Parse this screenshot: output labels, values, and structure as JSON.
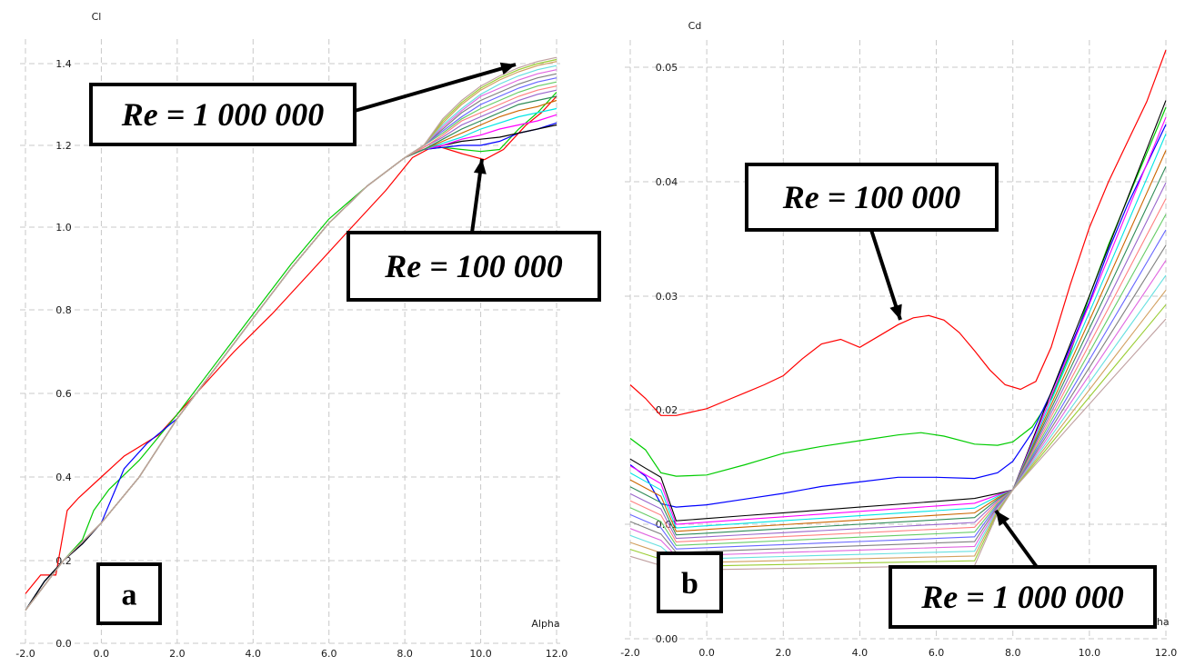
{
  "chart_data": [
    {
      "type": "line",
      "panel_label": "a",
      "ylabel": "Cl",
      "xlabel": "Alpha",
      "xlim": [
        -2.0,
        12.0
      ],
      "ylim": [
        0.0,
        1.4
      ],
      "xticks": [
        "-2.0",
        "0.0",
        "2.0",
        "4.0",
        "6.0",
        "8.0",
        "10.0",
        "12.0"
      ],
      "yticks": [
        "0.0",
        "0.2",
        "0.4",
        "0.6",
        "0.8",
        "1.0",
        "1.2",
        "1.4"
      ],
      "grid": true,
      "annotations": [
        {
          "text": "Re = 1 000 000",
          "points_to": [
            11.2,
            1.4
          ]
        },
        {
          "text": "Re = 100 000",
          "points_to": [
            10.2,
            1.17
          ]
        }
      ],
      "series": [
        {
          "color": "#ff0000",
          "x": [
            -2.0,
            -1.6,
            -1.2,
            -0.9,
            -0.6,
            0,
            0.6,
            1.5,
            2.5,
            3.5,
            4.5,
            5.5,
            6.5,
            7.5,
            8.2,
            8.8,
            9.5,
            10.1,
            10.6,
            11.2,
            11.6,
            12.0
          ],
          "y": [
            0.12,
            0.165,
            0.165,
            0.32,
            0.35,
            0.4,
            0.45,
            0.5,
            0.6,
            0.7,
            0.79,
            0.89,
            0.99,
            1.09,
            1.17,
            1.2,
            1.18,
            1.165,
            1.19,
            1.25,
            1.28,
            1.32
          ]
        },
        {
          "color": "#00cc00",
          "x": [
            -2.0,
            -1.5,
            -1.0,
            -0.5,
            -0.2,
            0.2,
            1.0,
            2.0,
            3.0,
            4.0,
            5.0,
            6.0,
            7.0,
            8.0,
            8.5,
            9.0,
            9.5,
            10.0,
            10.5,
            11.0,
            11.5,
            12.0
          ],
          "y": [
            0.08,
            0.15,
            0.2,
            0.25,
            0.32,
            0.37,
            0.44,
            0.55,
            0.67,
            0.79,
            0.91,
            1.02,
            1.1,
            1.17,
            1.19,
            1.195,
            1.19,
            1.185,
            1.19,
            1.24,
            1.28,
            1.33
          ]
        },
        {
          "color": "#0000ff",
          "x": [
            -2.0,
            -1.5,
            -1.0,
            -0.5,
            0.0,
            0.6,
            1.2,
            2.0,
            3.0,
            4.0,
            5.0,
            6.0,
            7.0,
            8.0,
            8.5,
            9.0,
            9.5,
            10.0,
            10.5,
            11.0,
            11.5,
            12.0
          ],
          "y": [
            0.08,
            0.15,
            0.2,
            0.24,
            0.29,
            0.42,
            0.48,
            0.54,
            0.66,
            0.78,
            0.9,
            1.01,
            1.1,
            1.17,
            1.19,
            1.195,
            1.2,
            1.2,
            1.21,
            1.23,
            1.24,
            1.255
          ]
        },
        {
          "color": "#000000",
          "x": [
            -2.0,
            -1.5,
            -1.0,
            -0.5,
            0.0,
            1.0,
            2.0,
            3.0,
            4.0,
            5.0,
            6.0,
            7.0,
            8.0,
            8.5,
            9.0,
            9.5,
            10.0,
            10.5,
            11.0,
            11.5,
            12.0
          ],
          "y": [
            0.08,
            0.15,
            0.2,
            0.24,
            0.29,
            0.4,
            0.54,
            0.66,
            0.78,
            0.9,
            1.01,
            1.1,
            1.17,
            1.19,
            1.2,
            1.21,
            1.215,
            1.22,
            1.23,
            1.24,
            1.25
          ]
        },
        {
          "color": "#ff00ff",
          "x": [
            -2.0,
            -1.0,
            0.0,
            1.0,
            2.0,
            3.0,
            4.0,
            5.0,
            6.0,
            7.0,
            8.0,
            8.5,
            9.0,
            9.5,
            10.0,
            10.5,
            11.0,
            11.5,
            12.0
          ],
          "y": [
            0.08,
            0.2,
            0.29,
            0.4,
            0.54,
            0.66,
            0.78,
            0.9,
            1.01,
            1.1,
            1.17,
            1.19,
            1.2,
            1.215,
            1.225,
            1.24,
            1.25,
            1.26,
            1.275
          ]
        },
        {
          "color": "#00e5e5",
          "x": [
            -2.0,
            -1.0,
            0.0,
            1.0,
            2.0,
            3.0,
            4.0,
            5.0,
            6.0,
            7.0,
            8.0,
            8.5,
            9.0,
            9.5,
            10.0,
            10.5,
            11.0,
            11.5,
            12.0
          ],
          "y": [
            0.08,
            0.2,
            0.29,
            0.4,
            0.54,
            0.66,
            0.78,
            0.9,
            1.01,
            1.1,
            1.17,
            1.19,
            1.205,
            1.22,
            1.24,
            1.255,
            1.27,
            1.28,
            1.29
          ]
        },
        {
          "color": "#cc6600",
          "x": [
            -2.0,
            -1.0,
            0.0,
            1.0,
            2.0,
            3.0,
            4.0,
            5.0,
            6.0,
            7.0,
            8.0,
            8.5,
            9.0,
            9.5,
            10.0,
            10.5,
            11.0,
            11.5,
            12.0
          ],
          "y": [
            0.08,
            0.2,
            0.29,
            0.4,
            0.54,
            0.66,
            0.78,
            0.9,
            1.01,
            1.1,
            1.17,
            1.19,
            1.21,
            1.23,
            1.25,
            1.27,
            1.285,
            1.295,
            1.31
          ]
        },
        {
          "color": "#2e8b57",
          "x": [
            -2.0,
            -1.0,
            0.0,
            1.0,
            2.0,
            3.0,
            4.0,
            5.0,
            6.0,
            7.0,
            8.0,
            8.5,
            9.0,
            9.5,
            10.0,
            10.5,
            11.0,
            11.5,
            12.0
          ],
          "y": [
            0.08,
            0.2,
            0.29,
            0.4,
            0.54,
            0.66,
            0.78,
            0.9,
            1.01,
            1.1,
            1.17,
            1.19,
            1.215,
            1.24,
            1.26,
            1.28,
            1.3,
            1.31,
            1.32
          ]
        },
        {
          "color": "#9966cc",
          "x": [
            -2.0,
            -1.0,
            0.0,
            1.0,
            2.0,
            3.0,
            4.0,
            5.0,
            6.0,
            7.0,
            8.0,
            8.5,
            9.0,
            9.5,
            10.0,
            10.5,
            11.0,
            11.5,
            12.0
          ],
          "y": [
            0.08,
            0.2,
            0.29,
            0.4,
            0.54,
            0.66,
            0.78,
            0.9,
            1.01,
            1.1,
            1.17,
            1.195,
            1.22,
            1.25,
            1.27,
            1.29,
            1.31,
            1.325,
            1.335
          ]
        },
        {
          "color": "#ff8080",
          "x": [
            -2.0,
            -1.0,
            0.0,
            1.0,
            2.0,
            3.0,
            4.0,
            5.0,
            6.0,
            7.0,
            8.0,
            8.5,
            9.0,
            9.5,
            10.0,
            10.5,
            11.0,
            11.5,
            12.0
          ],
          "y": [
            0.08,
            0.2,
            0.29,
            0.4,
            0.54,
            0.66,
            0.78,
            0.9,
            1.01,
            1.1,
            1.17,
            1.195,
            1.225,
            1.26,
            1.28,
            1.3,
            1.32,
            1.335,
            1.345
          ]
        },
        {
          "color": "#66cc66",
          "x": [
            -2.0,
            -1.0,
            0.0,
            1.0,
            2.0,
            3.0,
            4.0,
            5.0,
            6.0,
            7.0,
            8.0,
            8.5,
            9.0,
            9.5,
            10.0,
            10.5,
            11.0,
            11.5,
            12.0
          ],
          "y": [
            0.08,
            0.2,
            0.29,
            0.4,
            0.54,
            0.66,
            0.78,
            0.9,
            1.01,
            1.1,
            1.17,
            1.2,
            1.23,
            1.265,
            1.29,
            1.31,
            1.33,
            1.345,
            1.355
          ]
        },
        {
          "color": "#6666ff",
          "x": [
            -2.0,
            -1.0,
            0.0,
            1.0,
            2.0,
            3.0,
            4.0,
            5.0,
            6.0,
            7.0,
            8.0,
            8.5,
            9.0,
            9.5,
            10.0,
            10.5,
            11.0,
            11.5,
            12.0
          ],
          "y": [
            0.08,
            0.2,
            0.29,
            0.4,
            0.54,
            0.66,
            0.78,
            0.9,
            1.01,
            1.1,
            1.17,
            1.2,
            1.235,
            1.27,
            1.3,
            1.32,
            1.34,
            1.355,
            1.365
          ]
        },
        {
          "color": "#808080",
          "x": [
            -2.0,
            -1.0,
            0.0,
            1.0,
            2.0,
            3.0,
            4.0,
            5.0,
            6.0,
            7.0,
            8.0,
            8.5,
            9.0,
            9.5,
            10.0,
            10.5,
            11.0,
            11.5,
            12.0
          ],
          "y": [
            0.08,
            0.2,
            0.29,
            0.4,
            0.54,
            0.66,
            0.78,
            0.9,
            1.01,
            1.1,
            1.17,
            1.2,
            1.24,
            1.28,
            1.31,
            1.33,
            1.35,
            1.365,
            1.375
          ]
        },
        {
          "color": "#e066e0",
          "x": [
            -2.0,
            -1.0,
            0.0,
            1.0,
            2.0,
            3.0,
            4.0,
            5.0,
            6.0,
            7.0,
            8.0,
            8.5,
            9.0,
            9.5,
            10.0,
            10.5,
            11.0,
            11.5,
            12.0
          ],
          "y": [
            0.08,
            0.2,
            0.29,
            0.4,
            0.54,
            0.66,
            0.78,
            0.9,
            1.01,
            1.1,
            1.17,
            1.2,
            1.245,
            1.285,
            1.32,
            1.34,
            1.36,
            1.375,
            1.385
          ]
        },
        {
          "color": "#66e0e0",
          "x": [
            -2.0,
            -1.0,
            0.0,
            1.0,
            2.0,
            3.0,
            4.0,
            5.0,
            6.0,
            7.0,
            8.0,
            8.5,
            9.0,
            9.5,
            10.0,
            10.5,
            11.0,
            11.5,
            12.0
          ],
          "y": [
            0.08,
            0.2,
            0.29,
            0.4,
            0.54,
            0.66,
            0.78,
            0.9,
            1.01,
            1.1,
            1.17,
            1.2,
            1.25,
            1.29,
            1.325,
            1.35,
            1.37,
            1.385,
            1.395
          ]
        },
        {
          "color": "#d2a060",
          "x": [
            -2.0,
            -1.0,
            0.0,
            1.0,
            2.0,
            3.0,
            4.0,
            5.0,
            6.0,
            7.0,
            8.0,
            8.5,
            9.0,
            9.5,
            10.0,
            10.5,
            11.0,
            11.5,
            12.0
          ],
          "y": [
            0.08,
            0.2,
            0.29,
            0.4,
            0.54,
            0.66,
            0.78,
            0.9,
            1.01,
            1.1,
            1.17,
            1.2,
            1.255,
            1.3,
            1.335,
            1.36,
            1.38,
            1.395,
            1.405
          ]
        },
        {
          "color": "#9acd32",
          "x": [
            -2.0,
            -1.0,
            0.0,
            1.0,
            2.0,
            3.0,
            4.0,
            5.0,
            6.0,
            7.0,
            8.0,
            8.5,
            9.0,
            9.5,
            10.0,
            10.5,
            11.0,
            11.5,
            12.0
          ],
          "y": [
            0.08,
            0.2,
            0.29,
            0.4,
            0.54,
            0.66,
            0.78,
            0.9,
            1.01,
            1.1,
            1.17,
            1.2,
            1.26,
            1.305,
            1.34,
            1.365,
            1.385,
            1.4,
            1.41
          ]
        },
        {
          "color": "#c0a0a0",
          "x": [
            -2.0,
            -1.0,
            0.0,
            1.0,
            2.0,
            3.0,
            4.0,
            5.0,
            6.0,
            7.0,
            8.0,
            8.5,
            9.0,
            9.5,
            10.0,
            10.5,
            11.0,
            11.5,
            12.0
          ],
          "y": [
            0.08,
            0.2,
            0.29,
            0.4,
            0.54,
            0.66,
            0.78,
            0.9,
            1.01,
            1.1,
            1.17,
            1.2,
            1.265,
            1.31,
            1.345,
            1.37,
            1.39,
            1.405,
            1.415
          ]
        }
      ]
    },
    {
      "type": "line",
      "panel_label": "b",
      "ylabel": "Cd",
      "xlabel": "Alpha",
      "xlim": [
        -2.0,
        12.0
      ],
      "ylim": [
        0.0,
        0.052
      ],
      "xticks": [
        "-2.0",
        "0.0",
        "2.0",
        "4.0",
        "6.0",
        "8.0",
        "10.0",
        "12.0"
      ],
      "yticks": [
        "0.00",
        "0.01",
        "0.02",
        "0.03",
        "0.04",
        "0.05"
      ],
      "grid": true,
      "annotations": [
        {
          "text": "Re = 100 000",
          "points_to": [
            5.2,
            0.028
          ]
        },
        {
          "text": "Re = 1 000 000",
          "points_to": [
            7.6,
            0.0115
          ]
        }
      ],
      "series": [
        {
          "color": "#ff0000",
          "x": [
            -2.0,
            -1.6,
            -1.2,
            -0.8,
            -0.4,
            0.0,
            0.5,
            1.0,
            1.5,
            2.0,
            2.5,
            3.0,
            3.5,
            4.0,
            4.5,
            5.0,
            5.4,
            5.8,
            6.2,
            6.6,
            7.0,
            7.4,
            7.8,
            8.2,
            8.6,
            9.0,
            9.5,
            10.0,
            10.5,
            11.0,
            11.5,
            12.0
          ],
          "y": [
            0.0222,
            0.021,
            0.0195,
            0.0195,
            0.0198,
            0.0201,
            0.0208,
            0.0215,
            0.0222,
            0.023,
            0.0245,
            0.0258,
            0.0262,
            0.0255,
            0.0265,
            0.0275,
            0.0281,
            0.0283,
            0.0279,
            0.0268,
            0.0252,
            0.0235,
            0.0222,
            0.0218,
            0.0225,
            0.0255,
            0.031,
            0.036,
            0.04,
            0.0435,
            0.047,
            0.0515
          ]
        },
        {
          "color": "#00cc00",
          "x": [
            -2.0,
            -1.6,
            -1.2,
            -0.8,
            0.0,
            1.0,
            2.0,
            3.0,
            4.0,
            5.0,
            5.6,
            6.2,
            7.0,
            7.6,
            8.0,
            8.5,
            9.0,
            9.5,
            10.0,
            10.5,
            11.0,
            11.5,
            12.0
          ],
          "y": [
            0.0175,
            0.0165,
            0.0145,
            0.0142,
            0.0143,
            0.0152,
            0.0162,
            0.0168,
            0.0173,
            0.0178,
            0.018,
            0.0177,
            0.017,
            0.0169,
            0.0172,
            0.0185,
            0.021,
            0.025,
            0.03,
            0.0345,
            0.0385,
            0.0425,
            0.0465
          ]
        },
        {
          "color": "#0000ff",
          "x": [
            -2.0,
            -1.6,
            -1.2,
            -0.8,
            0.0,
            1.0,
            2.0,
            3.0,
            4.0,
            5.0,
            6.0,
            7.0,
            7.6,
            8.0,
            8.5,
            9.0,
            9.5,
            10.0,
            10.5,
            11.0,
            11.5,
            12.0
          ],
          "y": [
            0.0152,
            0.0142,
            0.0118,
            0.0115,
            0.0117,
            0.0122,
            0.0127,
            0.0133,
            0.0137,
            0.0141,
            0.0141,
            0.014,
            0.0145,
            0.0155,
            0.018,
            0.0215,
            0.0255,
            0.0295,
            0.034,
            0.038,
            0.0415,
            0.045
          ]
        }
      ]
    }
  ]
}
